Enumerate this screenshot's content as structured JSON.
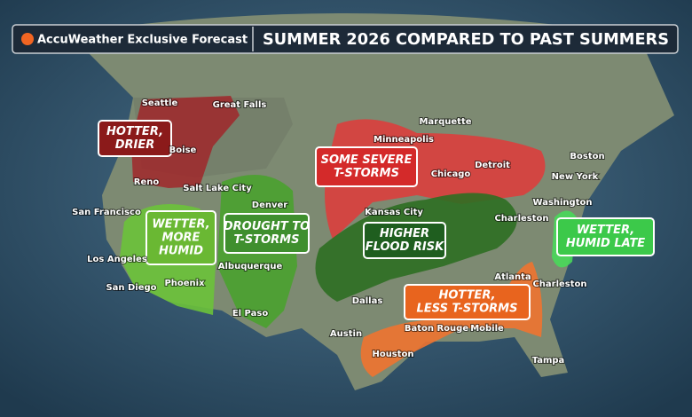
{
  "header": {
    "brand": "AccuWeather Exclusive Forecast",
    "title": "SUMMER 2026 COMPARED TO PAST SUMMERS"
  },
  "regions": [
    {
      "lines": [
        "HOTTER,",
        "DRIER"
      ]
    },
    {
      "lines": [
        "SOME SEVERE",
        "T-STORMS"
      ]
    },
    {
      "lines": [
        "WETTER,",
        "MORE",
        "HUMID"
      ]
    },
    {
      "lines": [
        "DROUGHT TO",
        "T-STORMS"
      ]
    },
    {
      "lines": [
        "HIGHER",
        "FLOOD RISK"
      ]
    },
    {
      "lines": [
        "HOTTER,",
        "LESS T-STORMS"
      ]
    },
    {
      "lines": [
        "WETTER,",
        "HUMID LATE"
      ]
    }
  ],
  "cities": [
    "Seattle",
    "Great Falls",
    "Boise",
    "Reno",
    "Salt Lake City",
    "Denver",
    "San Francisco",
    "Los Angeles",
    "San Diego",
    "Phoenix",
    "Albuquerque",
    "El Paso",
    "Minneapolis",
    "Marquette",
    "Chicago",
    "Detroit",
    "Boston",
    "New York",
    "Washington",
    "Charleston",
    "Kansas City",
    "Dallas",
    "Austin",
    "Houston",
    "Baton Rouge",
    "Mobile",
    "Atlanta",
    "Charleston",
    "Tampa"
  ]
}
